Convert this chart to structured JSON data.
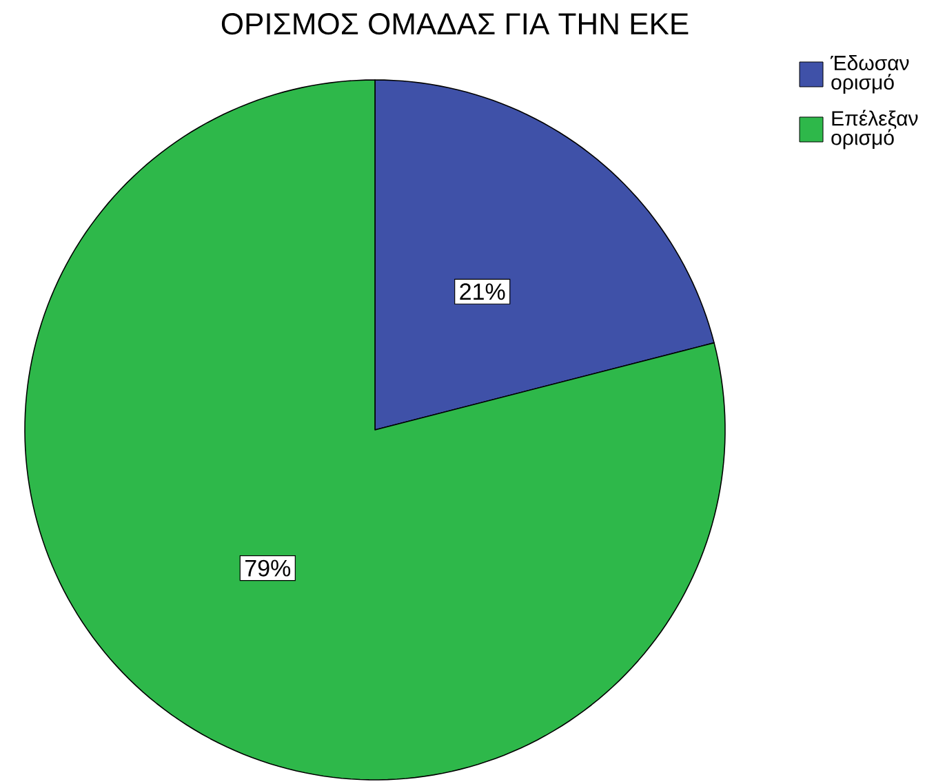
{
  "chart_data": {
    "type": "pie",
    "title": "ΟΡΙΣΜΟΣ ΟΜΑΔΑΣ ΓΙΑ ΤΗΝ ΕΚΕ",
    "categories": [
      "Έδωσαν ορισμό",
      "Επέλεξαν ορισμό"
    ],
    "values": [
      21,
      79
    ],
    "colors": [
      "#3f51a8",
      "#2eb84a"
    ],
    "value_labels": [
      "21%",
      "79%"
    ],
    "legend": "top right"
  }
}
